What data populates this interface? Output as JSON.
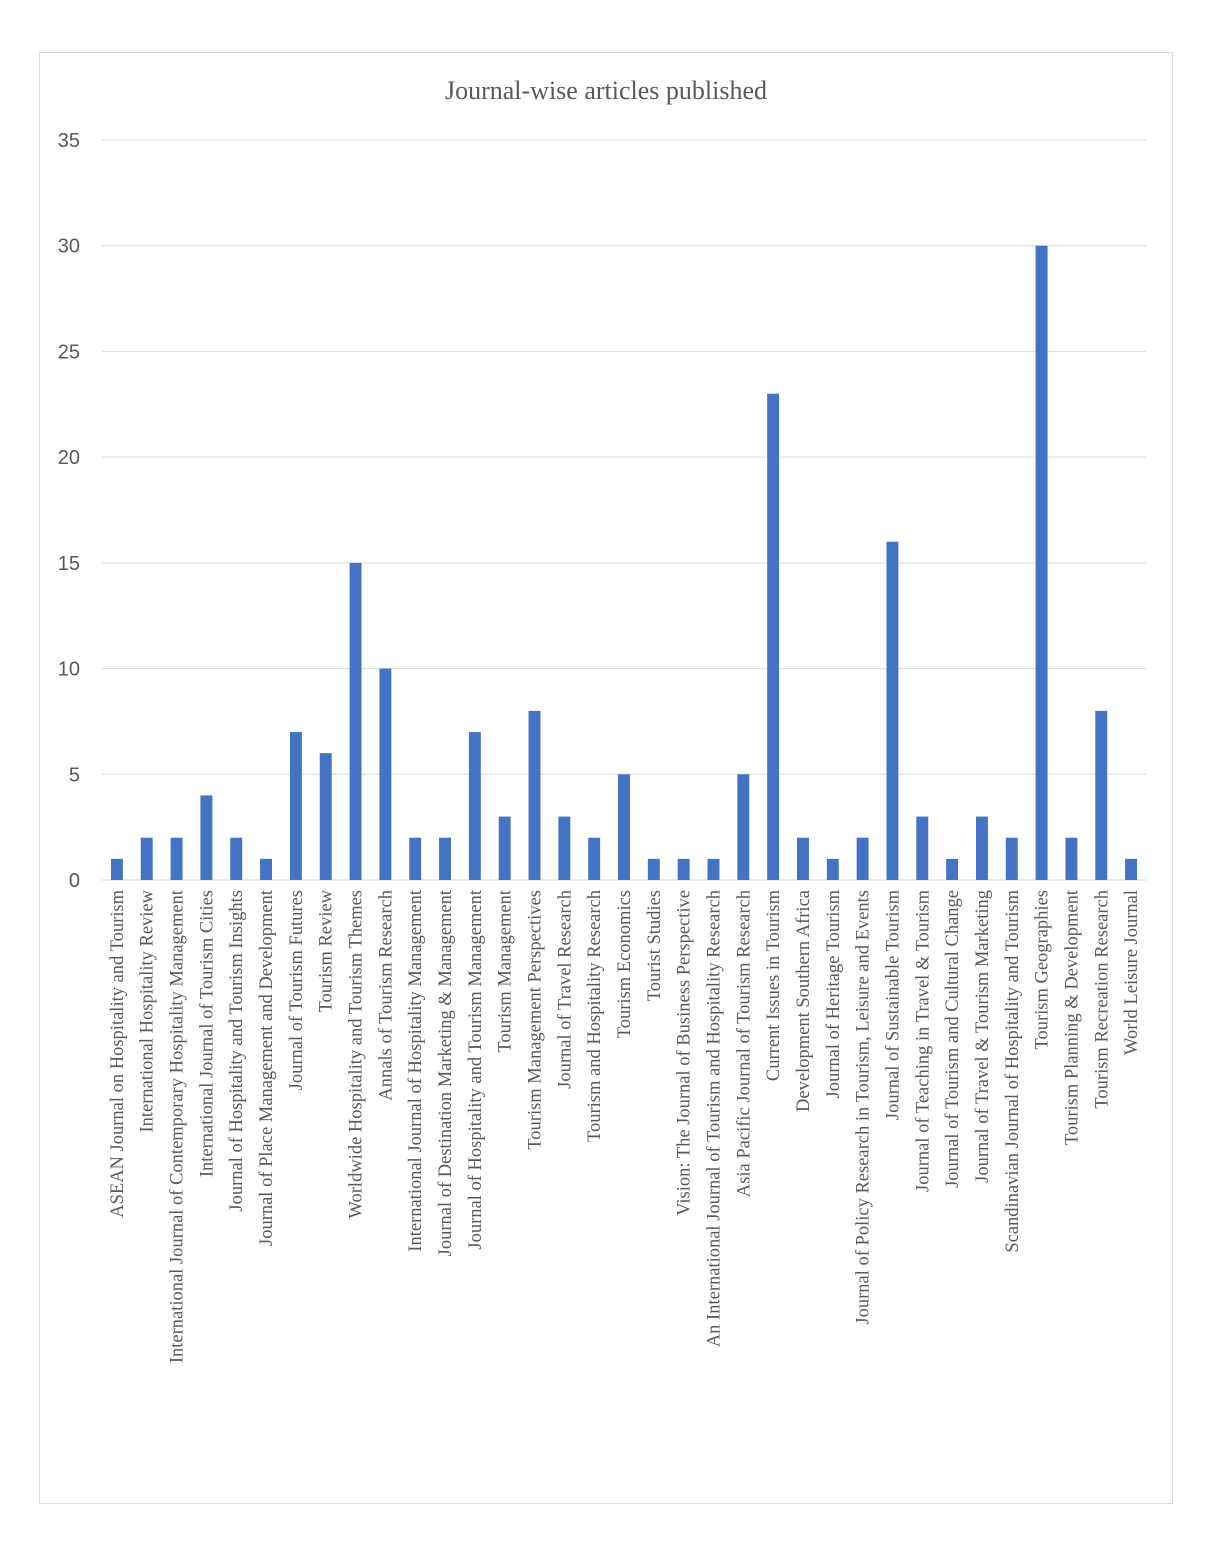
{
  "chart_data": {
    "type": "bar",
    "title": "Journal-wise articles published",
    "xlabel": "",
    "ylabel": "",
    "ylim": [
      0,
      35
    ],
    "yticks": [
      0,
      5,
      10,
      15,
      20,
      25,
      30,
      35
    ],
    "grid": true,
    "legend": "none",
    "bar_color": "#4472C4",
    "categories": [
      "ASEAN Journal on Hospitality and Tourism",
      "International Hospitality Review",
      "International Journal of Contemporary Hospitality Management",
      "International Journal of Tourism Cities",
      "Journal of Hospitality and Tourism Insights",
      "Journal of Place Management and Development",
      "Journal of Tourism Futures",
      "Tourism Review",
      "Worldwide Hospitality and Tourism Themes",
      "Annals of Tourism Research",
      "International Journal of Hospitality Management",
      "Journal of Destination Marketing & Management",
      "Journal of Hospitality and Tourism Management",
      "Tourism Management",
      "Tourism Management Perspectives",
      "Journal of Travel Research",
      "Tourism and Hospitality Research",
      "Tourism Economics",
      "Tourist Studies",
      "Vision: The Journal of Business Perspective",
      "An International Journal of Tourism and Hospitality Research",
      "Asia Pacific Journal of Tourism Research",
      "Current Issues in Tourism",
      "Development Southern Africa",
      "Journal of Heritage Tourism",
      "Journal of Policy Research in Tourism, Leisure and Events",
      "Journal of Sustainable Tourism",
      "Journal of Teaching in Travel & Tourism",
      "Journal of Tourism and Cultural Change",
      "Journal of Travel & Tourism Marketing",
      "Scandinavian Journal of Hospitality and Tourism",
      "Tourism Geographies",
      "Tourism Planning & Development",
      "Tourism Recreation Research",
      "World Leisure Journal"
    ],
    "values": [
      1,
      2,
      2,
      4,
      2,
      1,
      7,
      6,
      15,
      10,
      2,
      2,
      7,
      3,
      8,
      3,
      2,
      5,
      1,
      1,
      1,
      5,
      23,
      2,
      1,
      2,
      16,
      3,
      1,
      3,
      2,
      30,
      2,
      8,
      1
    ]
  }
}
